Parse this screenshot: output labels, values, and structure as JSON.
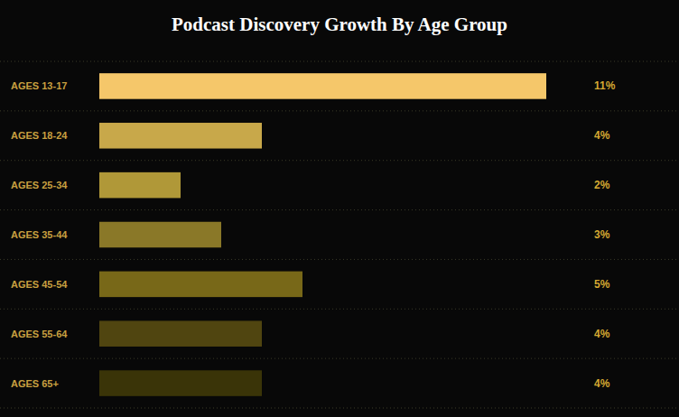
{
  "chart_data": {
    "type": "bar",
    "orientation": "horizontal",
    "title": "Podcast Discovery Growth By Age Group",
    "categories": [
      "AGES 13-17",
      "AGES 18-24",
      "AGES 25-34",
      "AGES 35-44",
      "AGES 45-54",
      "AGES 55-64",
      "AGES 65+"
    ],
    "values": [
      11,
      4,
      2,
      3,
      5,
      4,
      4
    ],
    "value_labels": [
      "11%",
      "4%",
      "2%",
      "3%",
      "5%",
      "4%",
      "4%"
    ],
    "colors": [
      "#f5c76a",
      "#c8a84a",
      "#b09838",
      "#8a7828",
      "#786818",
      "#504510",
      "#3a3408"
    ],
    "xlim": [
      0,
      12
    ],
    "data_labels": true,
    "tick_labels": false,
    "grid": false
  }
}
